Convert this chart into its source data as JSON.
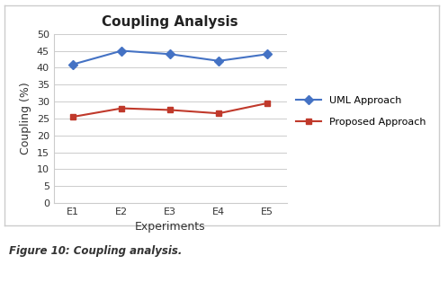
{
  "title": "Coupling Analysis",
  "xlabel": "Experiments",
  "ylabel": "Coupling (%)",
  "x_labels": [
    "E1",
    "E2",
    "E3",
    "E4",
    "E5"
  ],
  "uml_values": [
    41,
    45,
    44,
    42,
    44
  ],
  "proposed_values": [
    25.5,
    28,
    27.5,
    26.5,
    29.5
  ],
  "uml_color": "#4472C4",
  "proposed_color": "#C0392B",
  "ylim": [
    0,
    50
  ],
  "yticks": [
    0,
    5,
    10,
    15,
    20,
    25,
    30,
    35,
    40,
    45,
    50
  ],
  "legend_uml": "UML Approach",
  "legend_proposed": "Proposed Approach",
  "caption": "Figure 10: Coupling analysis.",
  "background_color": "#ffffff",
  "border_color": "#cccccc"
}
